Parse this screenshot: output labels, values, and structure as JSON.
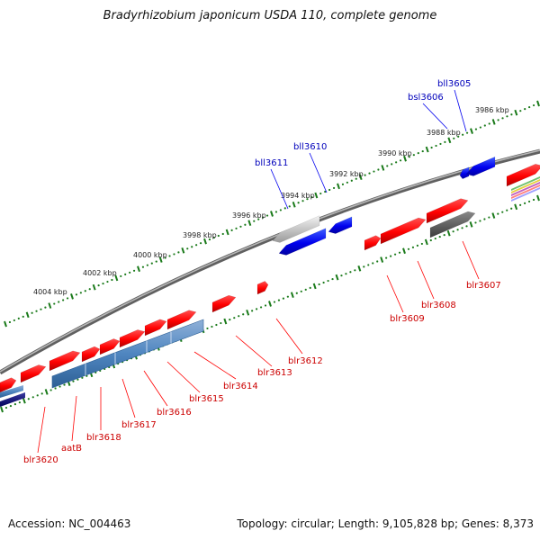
{
  "title": "Bradyrhizobium japonicum USDA 110, complete genome",
  "footer": {
    "accession": "Accession: NC_004463",
    "topology": "Topology: circular; Length: 9,105,828 bp; Genes: 8,373"
  },
  "colors": {
    "forward_gene": "#ff0000",
    "reverse_gene": "#0000ee",
    "forward_label": "#cc0000",
    "reverse_label": "#0000bb",
    "ruler_tick": "#1a7a1a",
    "backbone": "#808080"
  },
  "kbp_labels": [
    "3986 kbp",
    "3988 kbp",
    "3990 kbp",
    "3992 kbp",
    "3994 kbp",
    "3996 kbp",
    "3998 kbp",
    "4000 kbp",
    "4002 kbp",
    "4004 kbp"
  ],
  "reverse_gene_labels": [
    "bll3605",
    "bsl3606",
    "bll3610",
    "bll3611"
  ],
  "forward_gene_labels": [
    "blr3607",
    "blr3608",
    "blr3609",
    "blr3612",
    "blr3613",
    "blr3614",
    "blr3615",
    "blr3616",
    "blr3617",
    "blr3618",
    "aatB",
    "blr3620"
  ]
}
